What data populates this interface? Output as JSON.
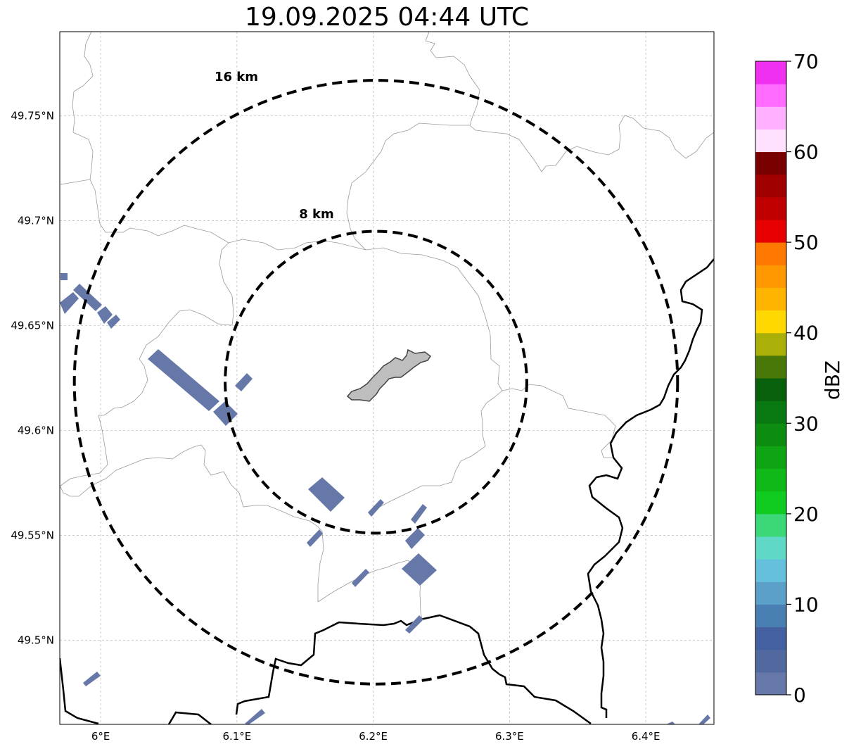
{
  "title": "19.09.2025 04:44 UTC",
  "map": {
    "lat_labels": [
      "49.75°N",
      "49.7°N",
      "49.65°N",
      "49.6°N",
      "49.55°N",
      "49.5°N"
    ],
    "lat_values": [
      49.75,
      49.7,
      49.65,
      49.6,
      49.55,
      49.5
    ],
    "lon_labels": [
      "6°E",
      "6.1°E",
      "6.2°E",
      "6.3°E",
      "6.4°E"
    ],
    "lon_values": [
      6.0,
      6.1,
      6.2,
      6.3,
      6.4
    ],
    "extent": {
      "lon_min": 5.97,
      "lon_max": 6.45,
      "lat_min": 49.46,
      "lat_max": 49.79
    },
    "range_rings": [
      {
        "label": "8 km",
        "radius_km": 8
      },
      {
        "label": "16 km",
        "radius_km": 16
      }
    ],
    "radar_center": {
      "lon": 6.202,
      "lat": 49.623
    }
  },
  "colorbar": {
    "label": "dBZ",
    "min": 0,
    "max": 70,
    "tick_labels": [
      "0",
      "10",
      "20",
      "30",
      "40",
      "50",
      "60",
      "70"
    ],
    "tick_values": [
      0,
      10,
      20,
      30,
      40,
      50,
      60,
      70
    ],
    "colors": [
      "#6678a8",
      "#5269a0",
      "#4460a0",
      "#4a7fb4",
      "#5aa0c8",
      "#64c0dc",
      "#60d8c8",
      "#3cd878",
      "#10cc20",
      "#10b818",
      "#0ea414",
      "#0c8c10",
      "#087810",
      "#08600c",
      "#4a7808",
      "#aab008",
      "#ffd800",
      "#ffb400",
      "#ff9800",
      "#ff7800",
      "#e80000",
      "#c00000",
      "#a00000",
      "#780000",
      "#ffe0ff",
      "#ffb0ff",
      "#ff6cff",
      "#f030f0"
    ]
  },
  "echo_color": "#6678a8",
  "city_color": "#bebebe"
}
